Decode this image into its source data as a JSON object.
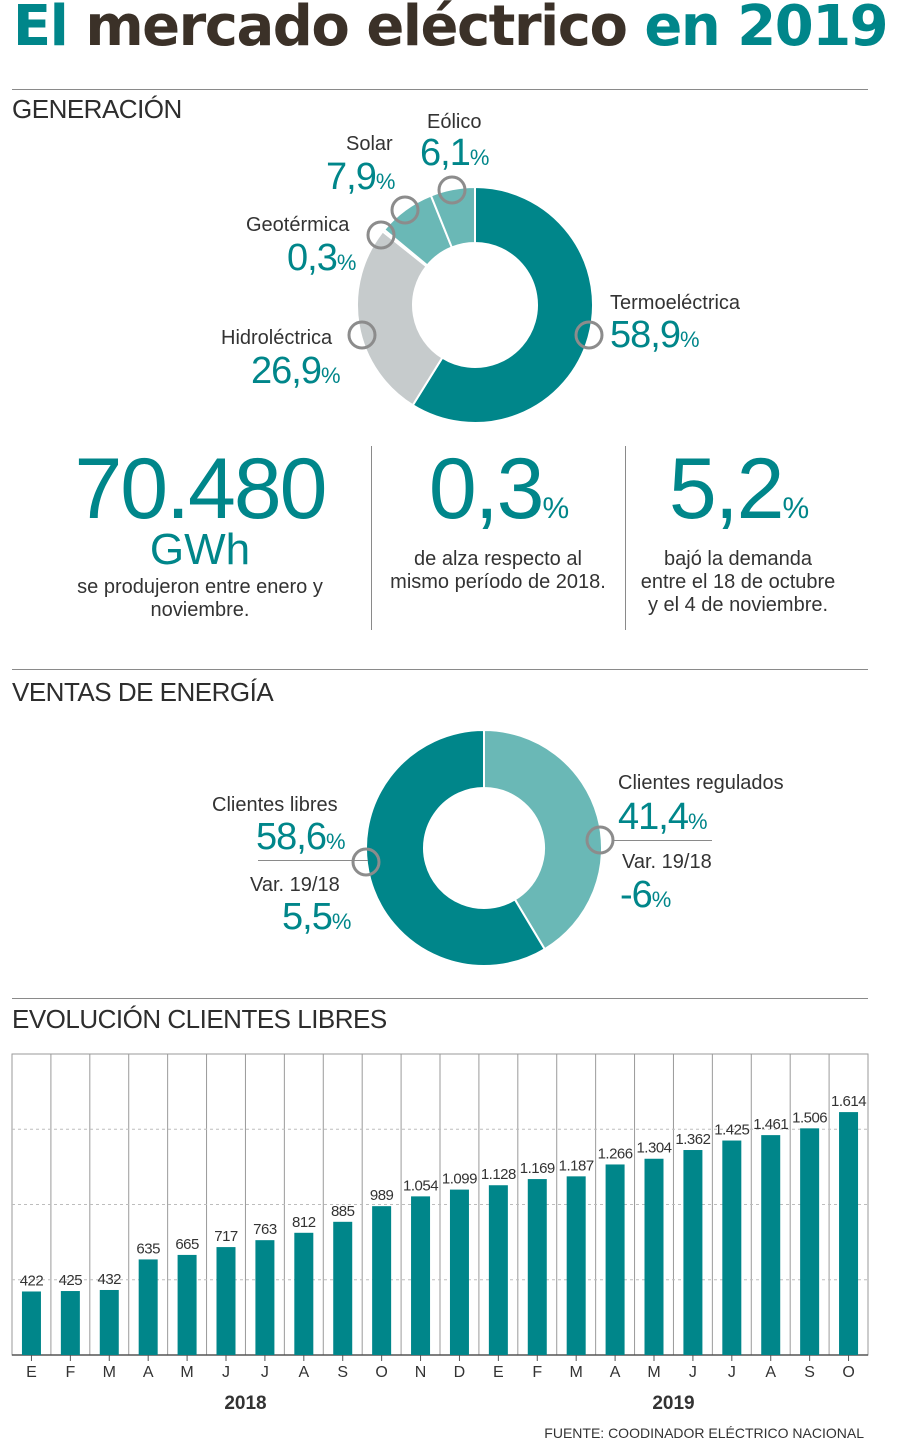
{
  "title": {
    "part1": "El",
    "part2": "mercado eléctrico",
    "part3": "en 2019"
  },
  "colors": {
    "accent": "#00868a",
    "light_teal": "#6ab8b6",
    "gray": "#c6cbcc",
    "dark_text": "#3b3128"
  },
  "generacion": {
    "section_label": "GENERACIÓN",
    "slices": [
      {
        "name": "Termoeléctrica",
        "value": "58,9",
        "unit": "%",
        "share": 58.9,
        "color": "#00868a"
      },
      {
        "name": "Hidroléctrica",
        "value": "26,9",
        "unit": "%",
        "share": 26.9,
        "color": "#c6cbcc"
      },
      {
        "name": "Geotérmica",
        "value": "0,3",
        "unit": "%",
        "share": 0.3,
        "color": "#c6cbcc"
      },
      {
        "name": "Solar",
        "value": "7,9",
        "unit": "%",
        "share": 7.9,
        "color": "#6ab8b6"
      },
      {
        "name": "Eólico",
        "value": "6,1",
        "unit": "%",
        "share": 6.1,
        "color": "#6ab8b6"
      }
    ]
  },
  "stats": [
    {
      "value": "70.480",
      "unit": "GWh",
      "text": "se produjeron entre enero y noviembre."
    },
    {
      "value": "0,3",
      "unit": "%",
      "text": "de alza respecto al mismo período de 2018."
    },
    {
      "value": "5,2",
      "unit": "%",
      "text": "bajó la demanda entre el 18 de octubre y el 4 de noviembre."
    }
  ],
  "ventas": {
    "section_label": "VENTAS DE ENERGÍA",
    "slices": [
      {
        "name": "Clientes regulados",
        "value": "41,4",
        "unit": "%",
        "share": 41.4,
        "color": "#6ab8b6",
        "var_label": "Var. 19/18",
        "var_value": "-6",
        "var_unit": "%"
      },
      {
        "name": "Clientes libres",
        "value": "58,6",
        "unit": "%",
        "share": 58.6,
        "color": "#00868a",
        "var_label": "Var. 19/18",
        "var_value": "5,5",
        "var_unit": "%"
      }
    ]
  },
  "evolucion": {
    "section_label": "EVOLUCIÓN CLIENTES LIBRES"
  },
  "chart_data": {
    "type": "bar",
    "title": "EVOLUCIÓN CLIENTES LIBRES",
    "categories": [
      "E",
      "F",
      "M",
      "A",
      "M",
      "J",
      "J",
      "A",
      "S",
      "O",
      "N",
      "D",
      "E",
      "F",
      "M",
      "A",
      "M",
      "J",
      "J",
      "A",
      "S",
      "O"
    ],
    "values": [
      422,
      425,
      432,
      635,
      665,
      717,
      763,
      812,
      885,
      989,
      1054,
      1099,
      1128,
      1169,
      1187,
      1266,
      1304,
      1362,
      1425,
      1461,
      1506,
      1614
    ],
    "value_labels": [
      "422",
      "425",
      "432",
      "635",
      "665",
      "717",
      "763",
      "812",
      "885",
      "989",
      "1.054",
      "1.099",
      "1.128",
      "1.169",
      "1.187",
      "1.266",
      "1.304",
      "1.362",
      "1.425",
      "1.461",
      "1.506",
      "1.614"
    ],
    "year_groups": [
      {
        "label": "2018",
        "start": 0,
        "end": 11
      },
      {
        "label": "2019",
        "start": 12,
        "end": 21
      }
    ],
    "ylim": [
      0,
      2000
    ],
    "grid": true,
    "color": "#00868a"
  },
  "source": "FUENTE: COODINADOR ELÉCTRICO NACIONAL"
}
